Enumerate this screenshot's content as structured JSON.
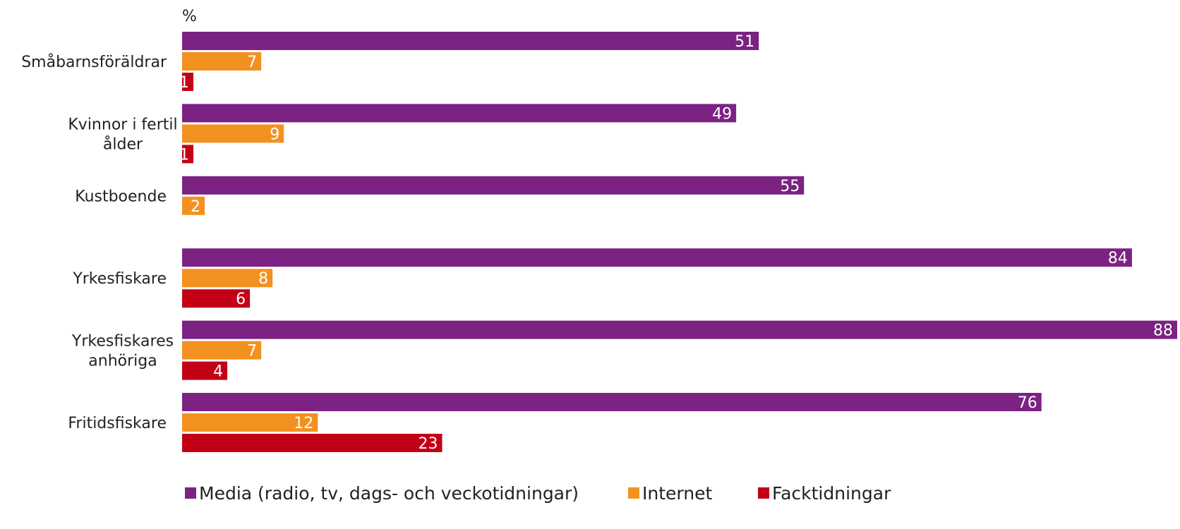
{
  "chart_data": {
    "type": "bar",
    "orientation": "horizontal",
    "unit_label": "%",
    "categories": [
      [
        "Småbarnsföräldrar"
      ],
      [
        "Kvinnor i fertil",
        "ålder"
      ],
      [
        "Kustboende"
      ],
      [
        "Yrkesfiskare"
      ],
      [
        "Yrkesfiskares",
        "anhöriga"
      ],
      [
        "Fritidsfiskare"
      ]
    ],
    "series": [
      {
        "name": "Media (radio, tv, dags- och veckotidningar)",
        "color": "#7b2283",
        "values": [
          51,
          49,
          55,
          84,
          88,
          76
        ]
      },
      {
        "name": "Internet",
        "color": "#f39120",
        "values": [
          7,
          9,
          2,
          8,
          7,
          12
        ]
      },
      {
        "name": "Facktidningar",
        "color": "#c30016",
        "values": [
          1,
          1,
          null,
          6,
          4,
          23
        ]
      }
    ],
    "xlim": [
      0,
      88
    ],
    "grid": false,
    "legend_position": "bottom"
  }
}
